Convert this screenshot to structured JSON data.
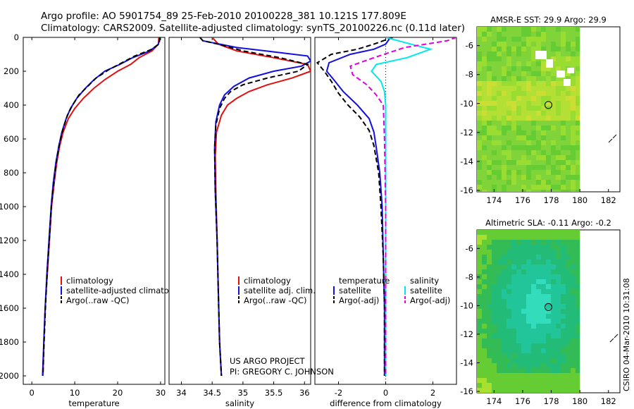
{
  "header": {
    "line1": "Argo profile: AO 5901754_89 25-Feb-2010 20100228_381 10.121S 177.809E",
    "line2": "Climatology: CARS2009. Satellite-adjusted climatology: synTS_20100226.nc (0.11d later)"
  },
  "project": {
    "line1": "US ARGO PROJECT",
    "line2": "PI: GREGORY C. JOHNSON"
  },
  "stamp": "CSIRO 04-Mar-2010 10:31:08",
  "colors": {
    "climatology": "#e01010",
    "satellite": "#1010e0",
    "argo": "#000000",
    "salinity_satellite": "#00e8ee",
    "salinity_argo": "#e000e0",
    "map_green": "#66cc33"
  },
  "chart_data": [
    {
      "id": "temperature",
      "type": "line",
      "xlabel": "temperature",
      "ylabel": "",
      "xlim": [
        -2,
        31
      ],
      "ylim": [
        2050,
        0
      ],
      "xticks": [
        0,
        10,
        20,
        30
      ],
      "yticks": [
        0,
        200,
        400,
        600,
        800,
        1000,
        1200,
        1400,
        1600,
        1800,
        2000
      ],
      "legend": [
        "climatology",
        "satellite-adjusted climatology",
        "Argo(..raw -QC)"
      ],
      "series": [
        {
          "name": "climatology",
          "color": "#e01010",
          "dash": "",
          "points": [
            [
              29.6,
              0
            ],
            [
              29.5,
              40
            ],
            [
              28,
              80
            ],
            [
              25,
              120
            ],
            [
              23,
              160
            ],
            [
              20,
              200
            ],
            [
              17,
              250
            ],
            [
              14.5,
              300
            ],
            [
              12,
              360
            ],
            [
              10,
              420
            ],
            [
              8.5,
              480
            ],
            [
              7.3,
              560
            ],
            [
              6.5,
              640
            ],
            [
              5.8,
              740
            ],
            [
              5.2,
              860
            ],
            [
              4.6,
              1000
            ],
            [
              4.1,
              1200
            ],
            [
              3.6,
              1400
            ],
            [
              3.1,
              1600
            ],
            [
              2.8,
              1800
            ],
            [
              2.6,
              2000
            ]
          ]
        },
        {
          "name": "satellite-adjusted climatology",
          "color": "#1010e0",
          "dash": "",
          "points": [
            [
              29.8,
              0
            ],
            [
              29.5,
              40
            ],
            [
              27.5,
              80
            ],
            [
              23.5,
              120
            ],
            [
              20.5,
              160
            ],
            [
              17,
              200
            ],
            [
              14.5,
              250
            ],
            [
              12.5,
              300
            ],
            [
              10.5,
              360
            ],
            [
              9,
              420
            ],
            [
              8,
              480
            ],
            [
              7,
              560
            ],
            [
              6.3,
              640
            ],
            [
              5.6,
              740
            ],
            [
              5,
              860
            ],
            [
              4.5,
              1000
            ],
            [
              4,
              1200
            ],
            [
              3.5,
              1400
            ],
            [
              3.1,
              1600
            ],
            [
              2.8,
              1800
            ],
            [
              2.5,
              2000
            ]
          ]
        },
        {
          "name": "Argo(..raw -QC)",
          "color": "#000000",
          "dash": "7,4",
          "points": [
            [
              29.9,
              0
            ],
            [
              29.6,
              40
            ],
            [
              28,
              70
            ],
            [
              24,
              110
            ],
            [
              21,
              150
            ],
            [
              18,
              190
            ],
            [
              15,
              240
            ],
            [
              13,
              290
            ],
            [
              11,
              340
            ],
            [
              9.5,
              400
            ],
            [
              8.3,
              460
            ],
            [
              7.3,
              540
            ],
            [
              6.5,
              620
            ],
            [
              5.8,
              720
            ],
            [
              5.2,
              840
            ],
            [
              4.6,
              980
            ],
            [
              4.1,
              1180
            ],
            [
              3.6,
              1380
            ],
            [
              3.2,
              1580
            ],
            [
              2.9,
              1780
            ],
            [
              2.6,
              1990
            ]
          ]
        }
      ]
    },
    {
      "id": "salinity",
      "type": "line",
      "xlabel": "salinity",
      "xlim": [
        33.8,
        36.1
      ],
      "ylim": [
        2050,
        0
      ],
      "xticks": [
        34,
        34.5,
        35,
        35.5,
        36
      ],
      "legend": [
        "climatology",
        "satellite adj. clim.",
        "Argo(..raw -QC)"
      ],
      "series": [
        {
          "name": "climatology",
          "color": "#e01010",
          "dash": "",
          "points": [
            [
              34.5,
              0
            ],
            [
              34.6,
              40
            ],
            [
              34.9,
              80
            ],
            [
              35.5,
              120
            ],
            [
              36.05,
              160
            ],
            [
              36.1,
              200
            ],
            [
              35.8,
              240
            ],
            [
              35.4,
              280
            ],
            [
              35.1,
              320
            ],
            [
              34.9,
              360
            ],
            [
              34.75,
              400
            ],
            [
              34.65,
              460
            ],
            [
              34.57,
              560
            ],
            [
              34.55,
              700
            ],
            [
              34.56,
              900
            ],
            [
              34.58,
              1200
            ],
            [
              34.6,
              1500
            ],
            [
              34.62,
              1800
            ],
            [
              34.65,
              2000
            ]
          ]
        },
        {
          "name": "satellite adj. clim.",
          "color": "#1010e0",
          "dash": "",
          "points": [
            [
              34.3,
              0
            ],
            [
              34.35,
              20
            ],
            [
              34.9,
              60
            ],
            [
              35.6,
              90
            ],
            [
              36.05,
              110
            ],
            [
              36.1,
              140
            ],
            [
              35.95,
              170
            ],
            [
              35.5,
              200
            ],
            [
              35.1,
              240
            ],
            [
              34.85,
              290
            ],
            [
              34.7,
              340
            ],
            [
              34.62,
              400
            ],
            [
              34.56,
              500
            ],
            [
              34.54,
              650
            ],
            [
              34.55,
              900
            ],
            [
              34.58,
              1200
            ],
            [
              34.6,
              1500
            ],
            [
              34.62,
              1800
            ],
            [
              34.65,
              2000
            ]
          ]
        },
        {
          "name": "Argo(..raw -QC)",
          "color": "#000000",
          "dash": "7,4",
          "points": [
            [
              34.3,
              0
            ],
            [
              34.35,
              20
            ],
            [
              34.6,
              40
            ],
            [
              35.0,
              80
            ],
            [
              35.6,
              120
            ],
            [
              36.05,
              160
            ],
            [
              35.9,
              200
            ],
            [
              35.4,
              240
            ],
            [
              35.0,
              280
            ],
            [
              34.8,
              320
            ],
            [
              34.7,
              360
            ],
            [
              34.62,
              420
            ],
            [
              34.56,
              520
            ],
            [
              34.54,
              650
            ],
            [
              34.55,
              900
            ],
            [
              34.58,
              1200
            ],
            [
              34.6,
              1500
            ],
            [
              34.62,
              1800
            ],
            [
              34.65,
              2000
            ]
          ]
        }
      ]
    },
    {
      "id": "difference",
      "type": "line",
      "xlabel": "difference from climatology",
      "xlim": [
        -3,
        3
      ],
      "ylim": [
        2050,
        0
      ],
      "xticks": [
        -2,
        0,
        2
      ],
      "legend_temperature": {
        "title": "temperature",
        "items": [
          "satellite",
          "Argo(-adj)"
        ]
      },
      "legend_salinity": {
        "title": "salinity",
        "items": [
          "satellite",
          "Argo(-adj)"
        ]
      },
      "series": [
        {
          "name": "temperature satellite",
          "color": "#1010e0",
          "dash": "",
          "points": [
            [
              0.2,
              0
            ],
            [
              0,
              40
            ],
            [
              -0.5,
              70
            ],
            [
              -1.5,
              100
            ],
            [
              -2.4,
              150
            ],
            [
              -2.5,
              200
            ],
            [
              -2.2,
              250
            ],
            [
              -1.8,
              320
            ],
            [
              -1.2,
              400
            ],
            [
              -0.7,
              480
            ],
            [
              -0.5,
              560
            ],
            [
              -0.4,
              650
            ],
            [
              -0.25,
              800
            ],
            [
              -0.15,
              1000
            ],
            [
              -0.1,
              1300
            ],
            [
              -0.05,
              1600
            ],
            [
              -0.05,
              2000
            ]
          ]
        },
        {
          "name": "temperature Argo(-adj)",
          "color": "#000000",
          "dash": "7,4",
          "points": [
            [
              0.3,
              0
            ],
            [
              -0.5,
              40
            ],
            [
              -1.2,
              70
            ],
            [
              -2.3,
              100
            ],
            [
              -2.9,
              150
            ],
            [
              -2.6,
              200
            ],
            [
              -2.3,
              260
            ],
            [
              -2.0,
              330
            ],
            [
              -1.6,
              400
            ],
            [
              -1.1,
              470
            ],
            [
              -0.7,
              550
            ],
            [
              -0.5,
              640
            ],
            [
              -0.3,
              800
            ],
            [
              -0.2,
              1000
            ],
            [
              -0.1,
              1300
            ],
            [
              -0.05,
              1600
            ],
            [
              -0.05,
              2000
            ]
          ]
        },
        {
          "name": "salinity satellite",
          "color": "#00e8ee",
          "dash": "",
          "points": [
            [
              0,
              0
            ],
            [
              0.8,
              30
            ],
            [
              1.9,
              70
            ],
            [
              0.9,
              120
            ],
            [
              -0.4,
              160
            ],
            [
              -0.6,
              200
            ],
            [
              -0.2,
              260
            ],
            [
              -0.05,
              320
            ],
            [
              0,
              400
            ],
            [
              0,
              600
            ],
            [
              0,
              1000
            ],
            [
              0,
              1400
            ],
            [
              0,
              2000
            ]
          ]
        },
        {
          "name": "salinity Argo(-adj)",
          "color": "#e000e0",
          "dash": "7,4",
          "points": [
            [
              3.0,
              0
            ],
            [
              2.6,
              20
            ],
            [
              0.8,
              60
            ],
            [
              -0.5,
              120
            ],
            [
              -1.5,
              170
            ],
            [
              -1.4,
              220
            ],
            [
              -0.8,
              280
            ],
            [
              -0.4,
              340
            ],
            [
              -0.1,
              400
            ],
            [
              -0.05,
              600
            ],
            [
              0,
              1000
            ],
            [
              0,
              1400
            ],
            [
              0,
              2000
            ]
          ]
        }
      ]
    }
  ],
  "maps": [
    {
      "id": "sst-map",
      "title": "AMSR-E SST: 29.9 Argo: 29.9",
      "xticks": [
        174,
        176,
        178,
        180,
        182
      ],
      "yticks": [
        -6,
        -8,
        -10,
        -12,
        -14,
        -16
      ],
      "xlim": [
        172.8,
        182.8
      ],
      "ylim": [
        -16.1,
        -4.7
      ],
      "data_east_limit": 180.0,
      "argo_position": [
        177.8,
        -10.1
      ],
      "base_color": "#66cc33",
      "palette": [
        "#55bb22",
        "#66cc33",
        "#80d43a",
        "#99dd33",
        "#b4e035",
        "#ccdd33",
        "#e5cc33"
      ]
    },
    {
      "id": "sla-map",
      "title": "Altimetric SLA: -0.11 Argo: -0.2",
      "xticks": [
        174,
        176,
        178,
        180,
        182
      ],
      "yticks": [
        -6,
        -8,
        -10,
        -12,
        -14,
        -16
      ],
      "xlim": [
        172.8,
        182.8
      ],
      "ylim": [
        -16.1,
        -4.7
      ],
      "data_east_limit": 180.0,
      "argo_position": [
        177.8,
        -10.1
      ],
      "base_color": "#33bb55",
      "palette": [
        "#a8e030",
        "#66cc33",
        "#33bb55",
        "#22bb77",
        "#22c499",
        "#33ddbb"
      ]
    }
  ]
}
